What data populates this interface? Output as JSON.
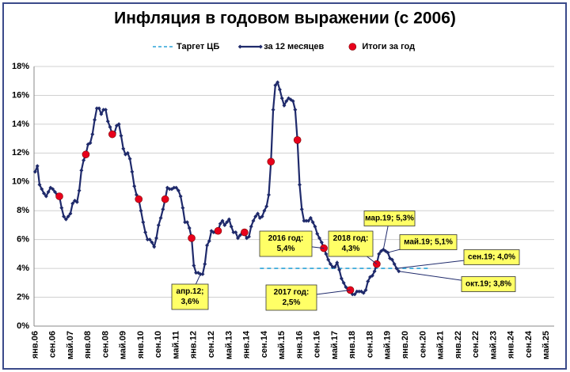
{
  "chart_data": {
    "type": "line",
    "title": "Инфляция в годовом выражении (с 2006)",
    "categories": [
      "янв.06",
      null,
      null,
      null,
      null,
      null,
      null,
      null,
      "сен.06",
      null,
      null,
      null,
      null,
      null,
      null,
      null,
      "май.07",
      null,
      null,
      null,
      null,
      null,
      null,
      null,
      "янв.08",
      null,
      null,
      null,
      null,
      null,
      null,
      null,
      "сен.08",
      null,
      null,
      null,
      null,
      null,
      null,
      null,
      "май.09",
      null,
      null,
      null,
      null,
      null,
      null,
      null,
      "янв.10",
      null,
      null,
      null,
      null,
      null,
      null,
      null,
      "сен.10",
      null,
      null,
      null,
      null,
      null,
      null,
      null,
      "май.11",
      null,
      null,
      null,
      null,
      null,
      null,
      null,
      "янв.12",
      null,
      null,
      null,
      null,
      null,
      null,
      null,
      "сен.12",
      null,
      null,
      null,
      null,
      null,
      null,
      null,
      "май.13",
      null,
      null,
      null,
      null,
      null,
      null,
      null,
      "янв.14",
      null,
      null,
      null,
      null,
      null,
      null,
      null,
      "сен.14",
      null,
      null,
      null,
      null,
      null,
      null,
      null,
      "май.15",
      null,
      null,
      null,
      null,
      null,
      null,
      null,
      "янв.16",
      null,
      null,
      null,
      null,
      null,
      null,
      null,
      "сен.16",
      null,
      null,
      null,
      null,
      null,
      null,
      null,
      "май.17",
      null,
      null,
      null,
      null,
      null,
      null,
      null,
      "янв.18",
      null,
      null,
      null,
      null,
      null,
      null,
      null,
      "сен.18",
      null,
      null,
      null,
      null,
      null,
      null,
      null,
      "май.19",
      null,
      null,
      null,
      null,
      null,
      null,
      null,
      "янв.20",
      null,
      null,
      null,
      null,
      null,
      null,
      null,
      "сен.20",
      null,
      null,
      null,
      null,
      null,
      null,
      null,
      "май.21",
      null,
      null,
      null,
      null,
      null,
      null,
      null,
      "янв.22",
      null,
      null,
      null,
      null,
      null,
      null,
      null,
      "сен.22",
      null,
      null,
      null,
      null,
      null,
      null,
      null,
      "май.23",
      null,
      null,
      null,
      null,
      null,
      null,
      null,
      "янв.24",
      null,
      null,
      null,
      null,
      null,
      null,
      null,
      "сен.24",
      null,
      null,
      null,
      null,
      null,
      null,
      null,
      "май.25",
      null,
      null,
      null
    ],
    "series": [
      {
        "name": "за 12 месяцев",
        "color": "#1f2a6b",
        "style": "line",
        "values": [
          10.7,
          11.1,
          9.8,
          9.5,
          9.2,
          9.0,
          9.3,
          9.6,
          9.5,
          9.3,
          9.1,
          9.0,
          8.2,
          7.6,
          7.4,
          7.6,
          7.8,
          8.5,
          8.7,
          8.6,
          9.4,
          10.8,
          11.5,
          11.9,
          12.6,
          12.7,
          13.3,
          14.3,
          15.1,
          15.1,
          14.7,
          15.0,
          15.0,
          14.2,
          13.8,
          13.3,
          13.4,
          13.9,
          14.0,
          13.2,
          12.3,
          11.9,
          12.0,
          11.6,
          10.7,
          9.7,
          9.1,
          8.8,
          8.0,
          7.2,
          6.5,
          6.0,
          6.0,
          5.8,
          5.5,
          6.1,
          7.0,
          7.5,
          8.1,
          8.8,
          9.6,
          9.5,
          9.5,
          9.6,
          9.6,
          9.4,
          9.0,
          8.2,
          7.2,
          7.2,
          6.8,
          6.1,
          4.2,
          3.7,
          3.7,
          3.6,
          3.6,
          4.3,
          5.6,
          5.9,
          6.6,
          6.5,
          6.5,
          6.6,
          7.1,
          7.3,
          7.0,
          7.2,
          7.4,
          6.9,
          6.5,
          6.5,
          6.1,
          6.3,
          6.5,
          6.5,
          6.1,
          6.2,
          6.9,
          7.3,
          7.6,
          7.8,
          7.5,
          7.6,
          8.0,
          8.3,
          9.1,
          11.4,
          15.0,
          16.7,
          16.9,
          16.4,
          15.8,
          15.3,
          15.6,
          15.8,
          15.7,
          15.6,
          15.0,
          12.9,
          9.8,
          8.1,
          7.3,
          7.3,
          7.3,
          7.5,
          7.2,
          6.9,
          6.4,
          6.1,
          5.8,
          5.4,
          5.0,
          4.6,
          4.3,
          4.1,
          4.1,
          4.4,
          3.9,
          3.3,
          3.0,
          2.7,
          2.5,
          2.5,
          2.2,
          2.2,
          2.4,
          2.4,
          2.4,
          2.3,
          2.5,
          3.1,
          3.4,
          3.5,
          3.8,
          4.3,
          5.0,
          5.2,
          5.3,
          5.2,
          5.1,
          4.7,
          4.6,
          4.3,
          4.0,
          3.8,
          null,
          null,
          null,
          null,
          null,
          null,
          null,
          null,
          null,
          null,
          null,
          null,
          null,
          null,
          null,
          null,
          null,
          null,
          null,
          null,
          null,
          null,
          null,
          null,
          null,
          null,
          null,
          null,
          null,
          null,
          null,
          null,
          null,
          null,
          null,
          null,
          null,
          null,
          null,
          null,
          null,
          null,
          null,
          null,
          null,
          null,
          null,
          null,
          null,
          null,
          null,
          null,
          null,
          null,
          null,
          null,
          null,
          null,
          null,
          null,
          null,
          null,
          null,
          null,
          null,
          null,
          null,
          null,
          null,
          null
        ]
      },
      {
        "name": "Итоги за год",
        "color": "#e8001c",
        "style": "dots",
        "values": [
          null,
          null,
          null,
          null,
          null,
          null,
          null,
          null,
          null,
          null,
          null,
          9.0,
          null,
          null,
          null,
          null,
          null,
          null,
          null,
          null,
          null,
          null,
          null,
          11.9,
          null,
          null,
          null,
          null,
          null,
          null,
          null,
          null,
          null,
          null,
          null,
          13.3,
          null,
          null,
          null,
          null,
          null,
          null,
          null,
          null,
          null,
          null,
          null,
          8.8,
          null,
          null,
          null,
          null,
          null,
          null,
          null,
          null,
          null,
          null,
          null,
          8.8,
          null,
          null,
          null,
          null,
          null,
          null,
          null,
          null,
          null,
          null,
          null,
          6.1,
          null,
          null,
          null,
          null,
          null,
          null,
          null,
          null,
          null,
          null,
          null,
          6.6,
          null,
          null,
          null,
          null,
          null,
          null,
          null,
          null,
          null,
          null,
          null,
          6.5,
          null,
          null,
          null,
          null,
          null,
          null,
          null,
          null,
          null,
          null,
          null,
          11.4,
          null,
          null,
          null,
          null,
          null,
          null,
          null,
          null,
          null,
          null,
          null,
          12.9,
          null,
          null,
          null,
          null,
          null,
          null,
          null,
          null,
          null,
          null,
          null,
          5.4,
          null,
          null,
          null,
          null,
          null,
          null,
          null,
          null,
          null,
          null,
          null,
          2.5,
          null,
          null,
          null,
          null,
          null,
          null,
          null,
          null,
          null,
          null,
          null,
          4.3,
          null,
          null,
          null,
          null,
          null,
          null,
          null,
          null,
          null,
          null,
          null,
          null,
          null,
          null,
          null,
          null,
          null,
          null,
          null,
          null,
          null,
          null,
          null,
          null,
          null,
          null,
          null,
          null,
          null,
          null,
          null,
          null,
          null,
          null,
          null,
          null,
          null,
          null,
          null,
          null,
          null,
          null,
          null,
          null,
          null,
          null,
          null,
          null,
          null,
          null,
          null,
          null,
          null,
          null,
          null,
          null,
          null,
          null,
          null,
          null,
          null,
          null,
          null,
          null,
          null,
          null,
          null,
          null,
          null,
          null,
          null,
          null,
          null,
          null,
          null,
          null,
          null,
          null,
          null,
          null
        ]
      },
      {
        "name": "Таргет ЦБ",
        "color": "#2aa4d8",
        "style": "dashed",
        "values": [
          null,
          null,
          null,
          null,
          null,
          null,
          null,
          null,
          null,
          null,
          null,
          null,
          null,
          null,
          null,
          null,
          null,
          null,
          null,
          null,
          null,
          null,
          null,
          null,
          null,
          null,
          null,
          null,
          null,
          null,
          null,
          null,
          null,
          null,
          null,
          null,
          null,
          null,
          null,
          null,
          null,
          null,
          null,
          null,
          null,
          null,
          null,
          null,
          null,
          null,
          null,
          null,
          null,
          null,
          null,
          null,
          null,
          null,
          null,
          null,
          null,
          null,
          null,
          null,
          null,
          null,
          null,
          null,
          null,
          null,
          null,
          null,
          null,
          null,
          null,
          null,
          null,
          null,
          null,
          null,
          null,
          null,
          null,
          null,
          null,
          null,
          null,
          null,
          null,
          null,
          null,
          null,
          null,
          null,
          null,
          null,
          null,
          null,
          null,
          null,
          null,
          null,
          4,
          4,
          4,
          4,
          4,
          4,
          4,
          4,
          4,
          4,
          4,
          4,
          4,
          4,
          4,
          4,
          4,
          4,
          4,
          4,
          4,
          4,
          4,
          4,
          4,
          4,
          4,
          4,
          4,
          4,
          4,
          4,
          4,
          4,
          4,
          4,
          4,
          4,
          4,
          4,
          4,
          4,
          4,
          4,
          4,
          4,
          4,
          4,
          4,
          4,
          4,
          4,
          4,
          4,
          4,
          4,
          4,
          4,
          4,
          4,
          4,
          4,
          4,
          4,
          4,
          4,
          4,
          4,
          4,
          4,
          4,
          4,
          4,
          4,
          4,
          4,
          4,
          4,
          null,
          null,
          null,
          null,
          null,
          null,
          null,
          null,
          null,
          null,
          null,
          null,
          null,
          null,
          null,
          null,
          null,
          null,
          null,
          null,
          null,
          null,
          null,
          null,
          null,
          null,
          null,
          null,
          null,
          null,
          null,
          null,
          null,
          null,
          null,
          null,
          null,
          null,
          null,
          null,
          null,
          null,
          null,
          null,
          null,
          null,
          null,
          null,
          null,
          null,
          null,
          null,
          null,
          null,
          null,
          null
        ]
      }
    ],
    "legend_order": [
      2,
      0,
      1
    ],
    "ylim": [
      0,
      18
    ],
    "yticks": [
      {
        "value": 0,
        "label": "0%"
      },
      {
        "value": 2,
        "label": "2%"
      },
      {
        "value": 4,
        "label": "4%"
      },
      {
        "value": 6,
        "label": "6%"
      },
      {
        "value": 8,
        "label": "8%"
      },
      {
        "value": 10,
        "label": "10%"
      },
      {
        "value": 12,
        "label": "12%"
      },
      {
        "value": 14,
        "label": "14%"
      },
      {
        "value": 16,
        "label": "16%"
      },
      {
        "value": 18,
        "label": "18%"
      }
    ],
    "grid": true,
    "annotations": [
      {
        "text": [
          "апр.12;",
          "3,6%"
        ]
      },
      {
        "text": [
          "2016 год:",
          "5,4%"
        ]
      },
      {
        "text": [
          "2017 год:",
          "2,5%"
        ]
      },
      {
        "text": [
          "2018 год:",
          "4,3%"
        ]
      },
      {
        "text": [
          "мар.19; 5,3%"
        ]
      },
      {
        "text": [
          "май.19; 5,1%"
        ]
      },
      {
        "text": [
          "сен.19; 4,0%"
        ]
      },
      {
        "text": [
          "окт.19; 3,8%"
        ]
      }
    ]
  }
}
